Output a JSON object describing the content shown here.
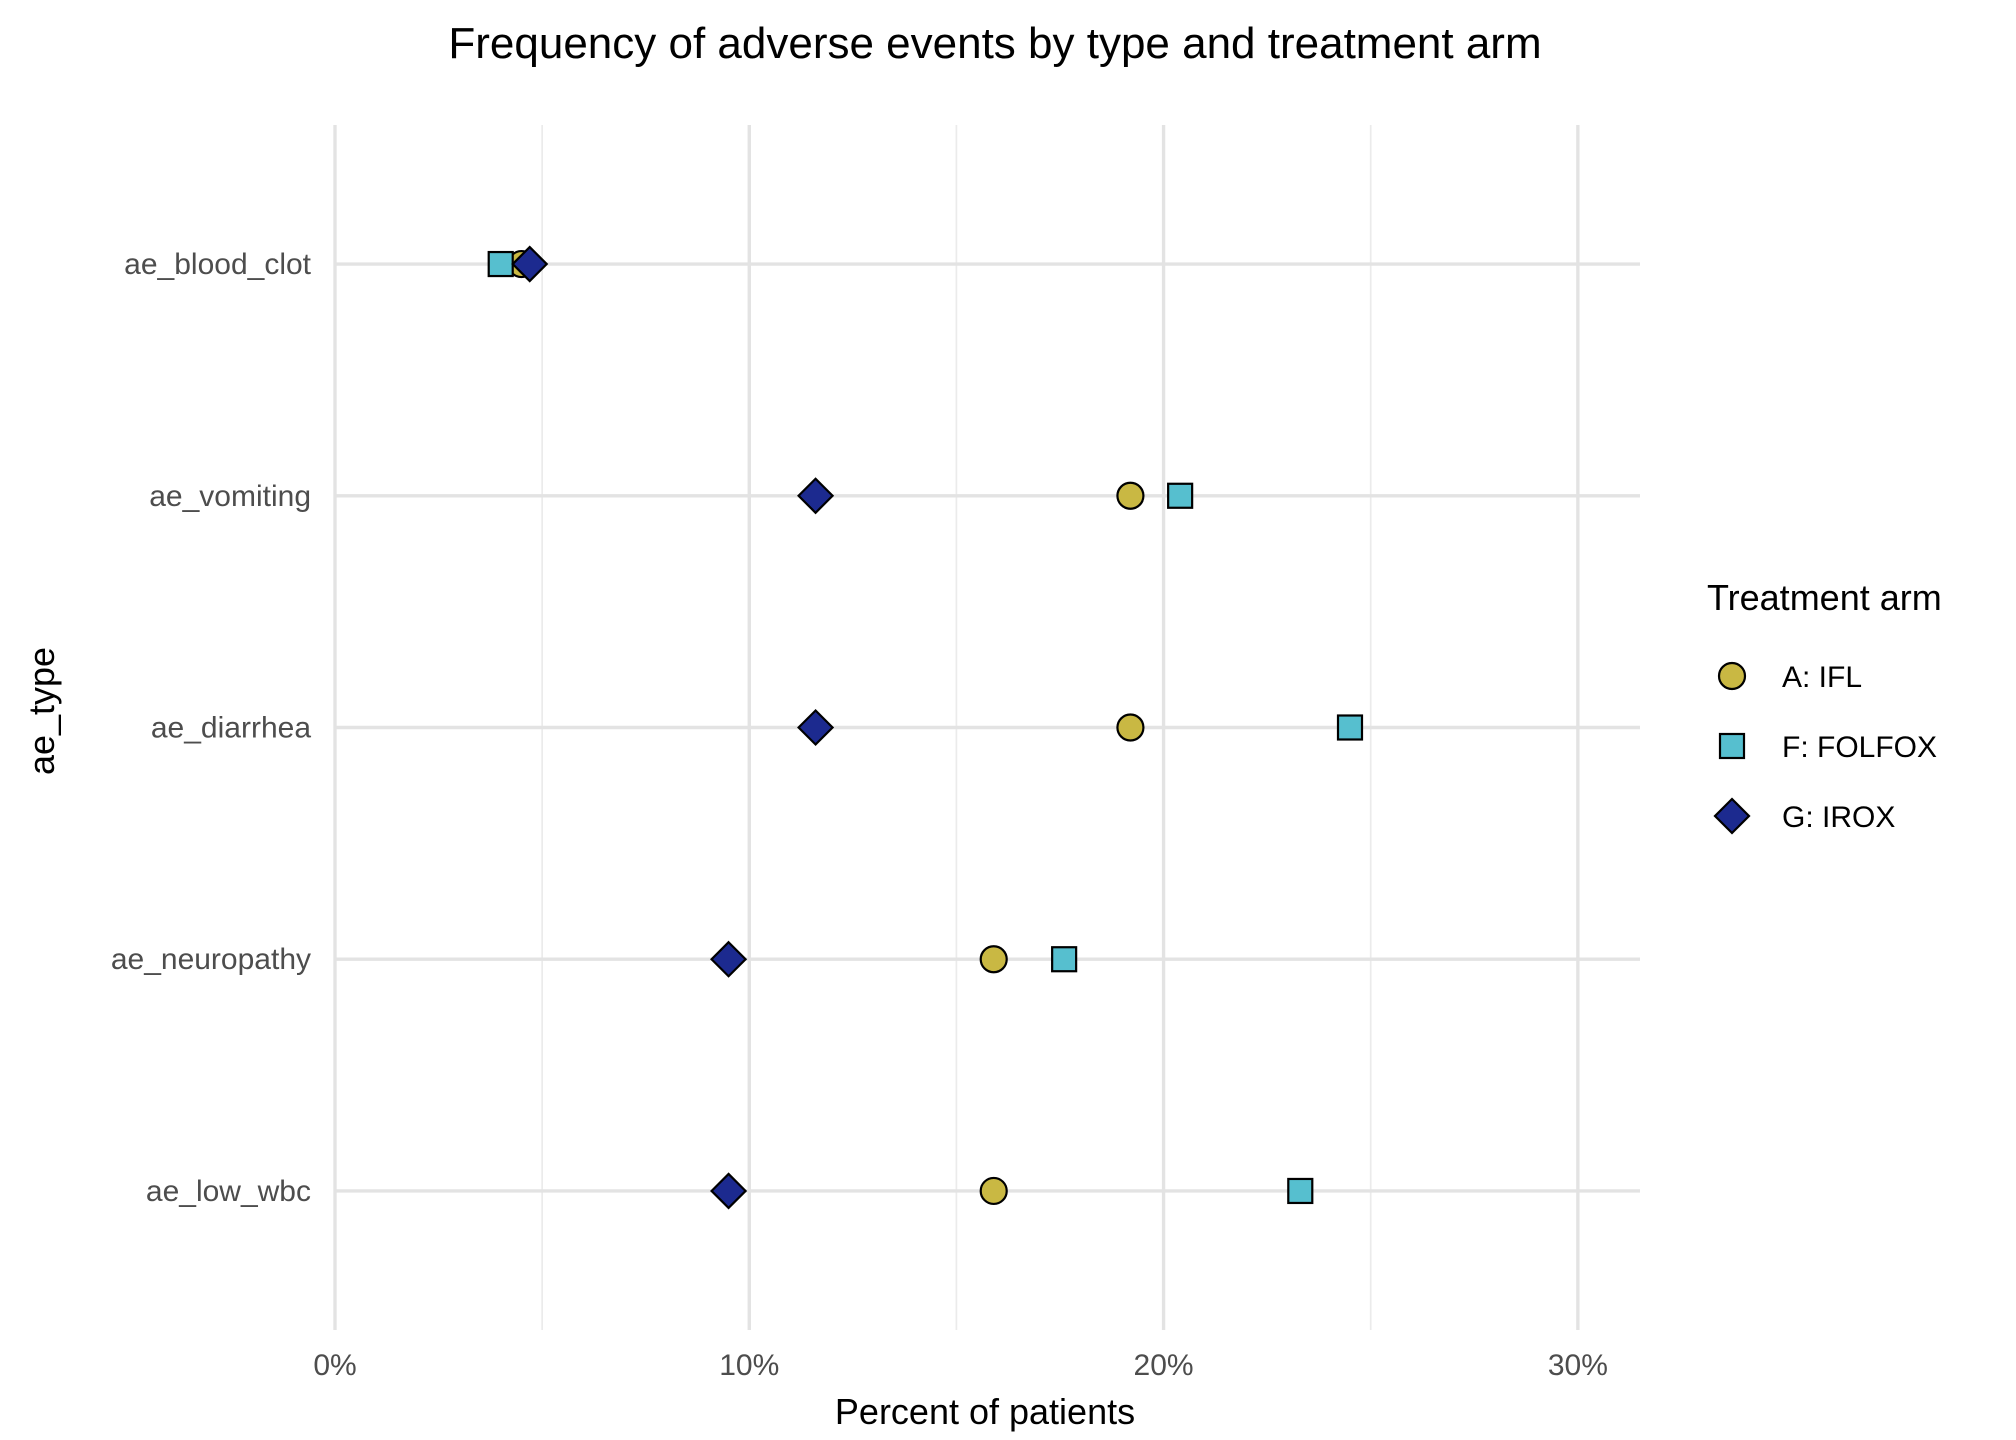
{
  "chart_data": {
    "type": "scatter",
    "title": "Frequency of adverse events by type and treatment arm",
    "xlabel": "Percent of patients",
    "ylabel": "ae_type",
    "xlim": [
      0,
      31.5
    ],
    "x_ticks": [
      0,
      10,
      20,
      30
    ],
    "x_tick_labels": [
      "0%",
      "10%",
      "20%",
      "30%"
    ],
    "categories": [
      "ae_blood_clot",
      "ae_vomiting",
      "ae_diarrhea",
      "ae_neuropathy",
      "ae_low_wbc"
    ],
    "grid": true,
    "legend": {
      "title": "Treatment arm",
      "position": "right"
    },
    "series": [
      {
        "name": "A: IFL",
        "shape": "circle",
        "color": "#c9b843",
        "values": [
          4.5,
          19.2,
          19.2,
          15.9,
          15.9
        ]
      },
      {
        "name": "F: FOLFOX",
        "shape": "square",
        "color": "#56bfcf",
        "values": [
          4.0,
          20.4,
          24.5,
          17.6,
          23.3
        ]
      },
      {
        "name": "G: IROX",
        "shape": "diamond",
        "color": "#1c2a8f",
        "values": [
          4.7,
          11.6,
          11.6,
          9.5,
          9.5
        ]
      }
    ]
  }
}
